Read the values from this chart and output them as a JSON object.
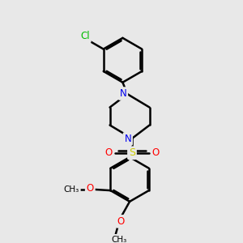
{
  "background_color": "#e8e8e8",
  "bond_color": "#000000",
  "bond_width": 1.8,
  "dbo": 0.055,
  "atom_colors": {
    "C": "#000000",
    "N": "#0000ee",
    "O": "#ff0000",
    "S": "#cccc00",
    "Cl": "#00bb00"
  },
  "font_size": 8.5,
  "figsize": [
    3.0,
    3.0
  ],
  "dpi": 100,
  "xlim": [
    0,
    10
  ],
  "ylim": [
    0,
    10
  ]
}
